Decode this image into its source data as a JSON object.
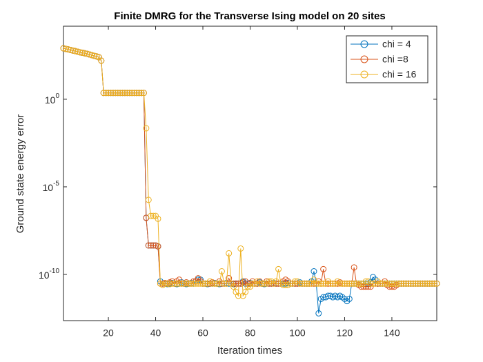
{
  "chart_data": {
    "type": "line",
    "title": "Finite DMRG for the Transverse Ising model on 20 sites",
    "x_label": "Iteration times",
    "y_label": "Ground state energy error",
    "x": [
      1,
      2,
      3,
      4,
      5,
      6,
      7,
      8,
      9,
      10,
      11,
      12,
      13,
      14,
      15,
      16,
      17,
      18,
      19,
      20,
      21,
      22,
      23,
      24,
      25,
      26,
      27,
      28,
      29,
      30,
      31,
      32,
      33,
      34,
      35,
      36,
      37,
      38,
      39,
      40,
      41,
      42,
      43,
      44,
      45,
      46,
      47,
      48,
      49,
      50,
      51,
      52,
      53,
      54,
      55,
      56,
      57,
      58,
      59,
      60,
      61,
      62,
      63,
      64,
      65,
      66,
      67,
      68,
      69,
      70,
      71,
      72,
      73,
      74,
      75,
      76,
      77,
      78,
      79,
      80,
      81,
      82,
      83,
      84,
      85,
      86,
      87,
      88,
      89,
      90,
      91,
      92,
      93,
      94,
      95,
      96,
      97,
      98,
      99,
      100,
      101,
      102,
      103,
      104,
      105,
      106,
      107,
      108,
      109,
      110,
      111,
      112,
      113,
      114,
      115,
      116,
      117,
      118,
      119,
      120,
      121,
      122,
      123,
      124,
      125,
      126,
      127,
      128,
      129,
      130,
      131,
      132,
      133,
      134,
      135,
      136,
      137,
      138,
      139,
      140,
      141,
      142,
      143,
      144,
      145,
      146,
      147,
      148,
      149,
      150,
      151,
      152,
      153,
      154,
      155,
      156,
      157,
      158,
      159
    ],
    "series": [
      {
        "name": "chi = 4",
        "color": "#0072BD",
        "values": [
          813,
          750,
          700,
          650,
          600,
          560,
          520,
          480,
          450,
          420,
          390,
          360,
          330,
          300,
          280,
          250,
          160,
          2.3,
          2.3,
          2.3,
          2.3,
          2.3,
          2.3,
          2.3,
          2.3,
          2.3,
          2.3,
          2.3,
          2.3,
          2.3,
          2.3,
          2.3,
          2.3,
          2.3,
          2.3,
          1.7e-07,
          4.5e-09,
          4.5e-09,
          4.5e-09,
          4.5e-09,
          4e-09,
          4e-11,
          3e-11,
          3e-11,
          2.8e-11,
          3e-11,
          3.2e-11,
          3e-11,
          2.8e-11,
          3e-11,
          3.5e-11,
          3e-11,
          2.8e-11,
          3e-11,
          3.2e-11,
          3e-11,
          4e-11,
          5e-11,
          5e-11,
          3e-11,
          3e-11,
          2.8e-11,
          3e-11,
          3e-11,
          3.2e-11,
          3e-11,
          2.8e-11,
          3e-11,
          3e-11,
          3.2e-11,
          3e-11,
          3e-11,
          2.8e-11,
          3e-11,
          3e-11,
          3e-11,
          4e-11,
          3e-11,
          3e-11,
          3.2e-11,
          3e-11,
          3e-11,
          3e-11,
          3.5e-11,
          3e-11,
          2.8e-11,
          3e-11,
          3e-11,
          3e-11,
          3.2e-11,
          3e-11,
          3e-11,
          3e-11,
          3e-11,
          3e-11,
          3.2e-11,
          3e-11,
          3e-11,
          3e-11,
          3e-11,
          3.5e-11,
          3e-11,
          3e-11,
          3e-11,
          3e-11,
          4e-11,
          1.5e-10,
          3e-11,
          6e-13,
          4e-12,
          5e-12,
          5e-12,
          6e-12,
          6e-12,
          5e-12,
          6e-12,
          5e-12,
          6e-12,
          5e-12,
          4e-12,
          3e-12,
          4e-12,
          3e-11,
          3e-11,
          3e-11,
          3e-11,
          3e-11,
          3e-11,
          3e-11,
          3e-11,
          3.5e-11,
          7e-11,
          5e-11,
          3e-11,
          3e-11,
          3e-11,
          3e-11,
          3e-11,
          3e-11,
          3e-11,
          3e-11,
          3e-11,
          3e-11,
          3e-11,
          3e-11,
          3e-11,
          3e-11,
          3e-11,
          3e-11,
          3e-11,
          3e-11,
          3e-11,
          3e-11,
          3e-11,
          3e-11,
          3e-11,
          3e-11,
          3e-11,
          3e-11
        ]
      },
      {
        "name": "chi =8",
        "color": "#D95319",
        "values": [
          813,
          750,
          700,
          650,
          600,
          560,
          520,
          480,
          450,
          420,
          390,
          360,
          330,
          300,
          280,
          250,
          160,
          2.3,
          2.3,
          2.3,
          2.3,
          2.3,
          2.3,
          2.3,
          2.3,
          2.3,
          2.3,
          2.3,
          2.3,
          2.3,
          2.3,
          2.3,
          2.3,
          2.3,
          2.3,
          1.7e-07,
          4.5e-09,
          4.5e-09,
          4.5e-09,
          4.5e-09,
          4e-09,
          3e-11,
          3e-11,
          3.2e-11,
          3e-11,
          3.5e-11,
          4e-11,
          3e-11,
          4e-11,
          5e-11,
          3e-11,
          3e-11,
          3.5e-11,
          3e-11,
          3e-11,
          4e-11,
          4e-11,
          6e-11,
          4e-11,
          3e-11,
          3e-11,
          3e-11,
          3e-11,
          3.5e-11,
          3e-11,
          3e-11,
          4e-11,
          3e-11,
          3e-11,
          3e-11,
          6e-11,
          3e-11,
          3e-11,
          3e-11,
          3e-11,
          3e-11,
          3.5e-11,
          4e-11,
          3e-11,
          3e-11,
          4e-11,
          3e-11,
          3e-11,
          4e-11,
          3e-11,
          3e-11,
          4e-11,
          3e-11,
          3e-11,
          3e-11,
          3e-11,
          3e-11,
          3e-11,
          4e-11,
          5e-11,
          4e-11,
          3e-11,
          3e-11,
          3e-11,
          3e-11,
          3e-11,
          3e-11,
          3e-11,
          3e-11,
          3e-11,
          3e-11,
          3e-11,
          3e-11,
          4e-11,
          3e-11,
          2e-10,
          3e-11,
          3e-11,
          3e-11,
          3e-11,
          3e-11,
          3e-11,
          3.5e-11,
          3e-11,
          3e-11,
          3e-11,
          3e-11,
          3e-11,
          2.5e-10,
          3e-11,
          2.5e-11,
          2e-11,
          2e-11,
          2e-11,
          2e-11,
          2e-11,
          3e-11,
          3e-11,
          3e-11,
          3e-11,
          3e-11,
          4e-11,
          2.5e-11,
          2e-11,
          2e-11,
          2e-11,
          2.5e-11,
          3e-11,
          3e-11,
          3e-11,
          3e-11,
          3e-11,
          3e-11,
          3e-11,
          3e-11,
          3e-11,
          3e-11,
          3e-11,
          3e-11,
          3e-11,
          3e-11,
          3e-11,
          3e-11,
          3e-11
        ]
      },
      {
        "name": "chi = 16",
        "color": "#EDB120",
        "values": [
          813,
          750,
          700,
          650,
          600,
          560,
          520,
          480,
          450,
          420,
          390,
          360,
          330,
          300,
          280,
          250,
          160,
          2.3,
          2.3,
          2.3,
          2.3,
          2.3,
          2.3,
          2.3,
          2.3,
          2.3,
          2.3,
          2.3,
          2.3,
          2.3,
          2.3,
          2.3,
          2.3,
          2.3,
          2.3,
          0.022,
          1.8e-06,
          2.2e-07,
          2.2e-07,
          2.2e-07,
          1.5e-07,
          3e-11,
          2.5e-11,
          3e-11,
          3e-11,
          2.8e-11,
          3e-11,
          3e-11,
          3e-11,
          3e-11,
          3e-11,
          3e-11,
          3e-11,
          3e-11,
          3e-11,
          3e-11,
          3e-11,
          3e-11,
          3e-11,
          3e-11,
          3e-11,
          3e-11,
          4e-11,
          3e-11,
          3e-11,
          3e-11,
          3e-11,
          1.5e-10,
          3e-11,
          3e-11,
          1.6e-09,
          3e-11,
          2e-11,
          1e-11,
          6e-12,
          3e-09,
          6e-12,
          1e-11,
          2e-11,
          2e-11,
          3e-11,
          3e-11,
          4e-11,
          3e-11,
          3e-11,
          3e-11,
          3e-11,
          4e-11,
          4e-11,
          3e-11,
          4e-11,
          2e-10,
          3e-11,
          2.5e-11,
          2.5e-11,
          2.5e-11,
          3e-11,
          3e-11,
          4e-11,
          4e-11,
          3e-11,
          3e-11,
          3e-11,
          3e-11,
          3e-11,
          3e-11,
          5e-11,
          3e-11,
          3e-11,
          3e-11,
          3e-11,
          3e-11,
          4e-11,
          3e-11,
          3e-11,
          3e-11,
          4e-11,
          3e-11,
          3e-11,
          3e-11,
          3e-11,
          3e-11,
          3e-11,
          3e-11,
          3e-11,
          3e-11,
          3e-11,
          3e-11,
          4e-11,
          4e-11,
          3e-11,
          3e-11,
          3e-11,
          4e-11,
          3e-11,
          3e-11,
          3e-11,
          3e-11,
          3e-11,
          3e-11,
          3e-11,
          3e-11,
          3e-11,
          3e-11,
          3e-11,
          3e-11,
          3e-11,
          3e-11,
          3e-11,
          3e-11,
          3e-11,
          3e-11,
          3e-11,
          3e-11,
          3e-11,
          3e-11,
          3e-11,
          3e-11,
          3e-11
        ]
      }
    ],
    "xlim": [
      1,
      159
    ],
    "xticks": [
      20,
      40,
      60,
      80,
      100,
      120,
      140
    ],
    "ylim": [
      2.3e-13,
      14800
    ],
    "ylog": true,
    "yticks": [
      {
        "value": 1e-10,
        "label": "10^-10"
      },
      {
        "value": 1e-05,
        "label": "10^-5"
      },
      {
        "value": 1,
        "label": "10^0"
      }
    ],
    "legend": "top-right",
    "marker": "circle"
  }
}
